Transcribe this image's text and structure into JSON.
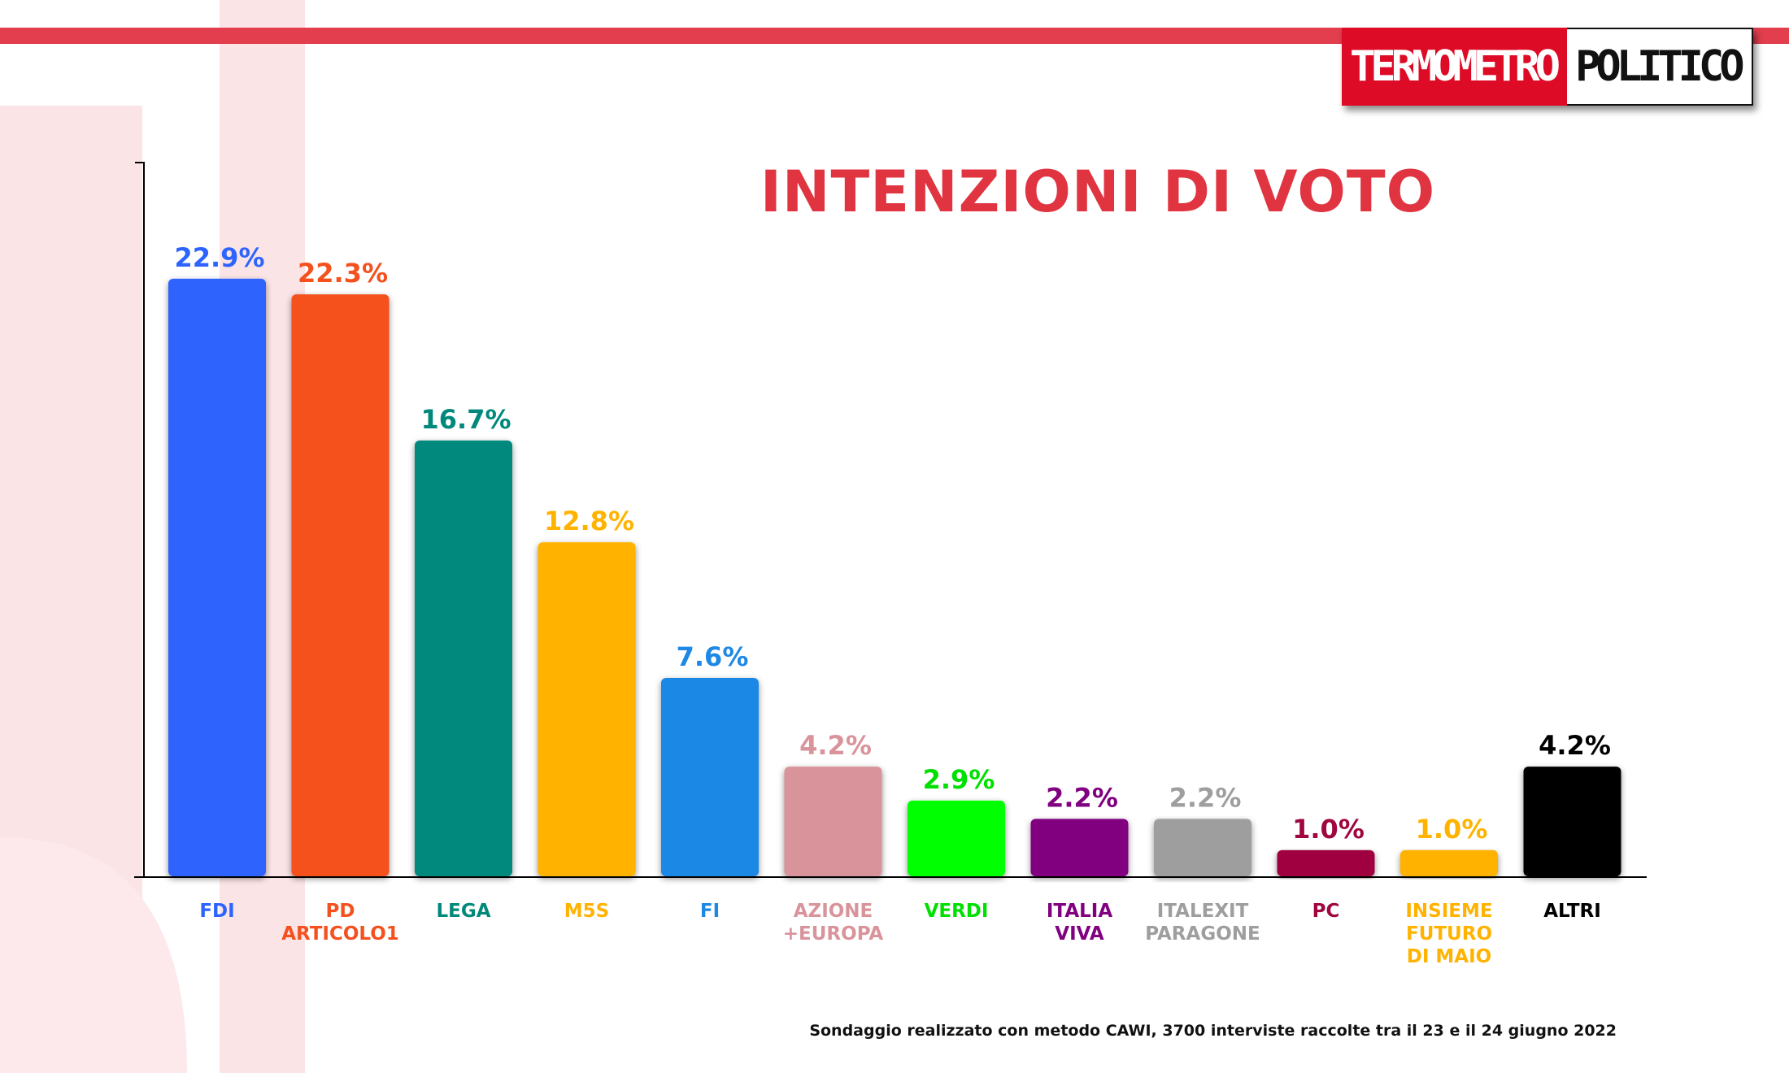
{
  "logo": {
    "part1": "TERMOMETRO",
    "part2": "POLITICO"
  },
  "title": "INTENZIONI DI VOTO",
  "footnote": "Sondaggio realizzato con metodo CAWI, 3700 interviste raccolte tra il 23 e il 24 giugno 2022",
  "colors": {
    "accent": "#e23e4d",
    "logo_red": "#dd0b25",
    "title": "#e03441"
  },
  "chart_data": {
    "type": "bar",
    "title": "INTENZIONI DI VOTO",
    "xlabel": "",
    "ylabel": "",
    "ylim": [
      0,
      25
    ],
    "grid": false,
    "categories": [
      [
        "FDI"
      ],
      [
        "PD",
        "ARTICOLO1"
      ],
      [
        "LEGA"
      ],
      [
        "M5S"
      ],
      [
        "FI"
      ],
      [
        "AZIONE",
        "+EUROPA"
      ],
      [
        "VERDI"
      ],
      [
        "ITALIA",
        "VIVA"
      ],
      [
        "ITALEXIT",
        "PARAGONE"
      ],
      [
        "PC"
      ],
      [
        "INSIEME",
        "FUTURO",
        "DI MAIO"
      ],
      [
        "ALTRI"
      ]
    ],
    "values": [
      22.9,
      22.3,
      16.7,
      12.8,
      7.6,
      4.2,
      2.9,
      2.2,
      2.2,
      1.0,
      1.0,
      4.2
    ],
    "value_labels": [
      "22.9%",
      "22.3%",
      "16.7%",
      "12.8%",
      "7.6%",
      "4.2%",
      "2.9%",
      "2.2%",
      "2.2%",
      "1.0%",
      "1.0%",
      "4.2%"
    ],
    "bar_colors": [
      "#2e64fe",
      "#f4511e",
      "#00897b",
      "#ffb300",
      "#1e88e5",
      "#d9949b",
      "#00ff00",
      "#800080",
      "#9e9e9e",
      "#a0063f",
      "#ffb300",
      "#000000"
    ],
    "label_colors": [
      "#2e64fe",
      "#f4511e",
      "#00897b",
      "#ffb300",
      "#1e88e5",
      "#d9949b",
      "#00e000",
      "#800080",
      "#9e9e9e",
      "#a0063f",
      "#ffb300",
      "#000000"
    ]
  }
}
